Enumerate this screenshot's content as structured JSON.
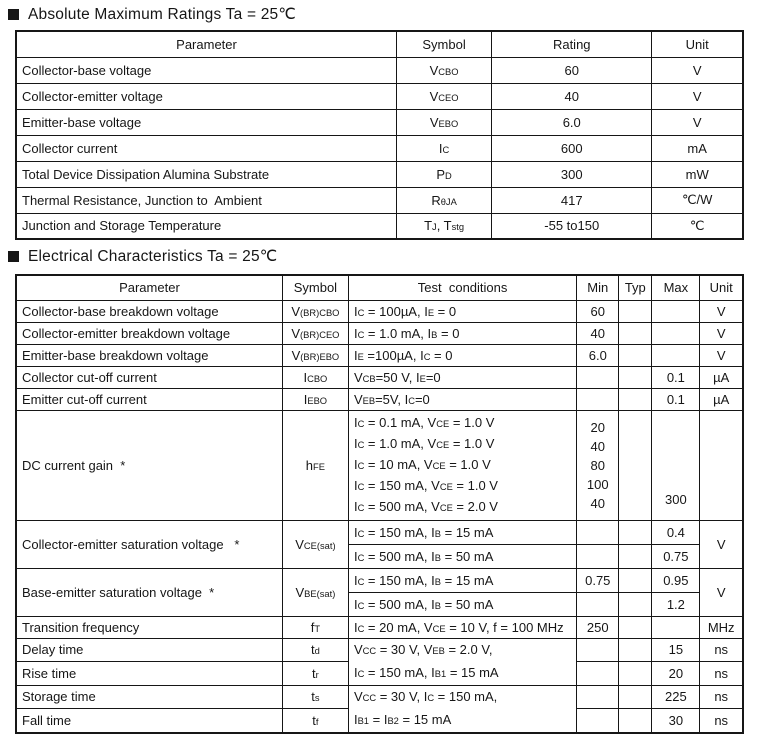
{
  "section1": {
    "title": "Absolute Maximum Ratings Ta = 25℃",
    "headers": {
      "parameter": "Parameter",
      "symbol": "Symbol",
      "rating": "Rating",
      "unit": "Unit"
    },
    "rows": {
      "vcbo": {
        "parameter": "Collector-base voltage",
        "symbol": "V{CBO}",
        "rating": "60",
        "unit": "V"
      },
      "vceo": {
        "parameter": "Collector-emitter voltage",
        "symbol": "V{CEO}",
        "rating": "40",
        "unit": "V"
      },
      "vebo": {
        "parameter": "Emitter-base voltage",
        "symbol": "V{EBO}",
        "rating": "6.0",
        "unit": "V"
      },
      "ic": {
        "parameter": "Collector current",
        "symbol": "I{C}",
        "rating": "600",
        "unit": "mA"
      },
      "pd": {
        "parameter": "Total Device Dissipation Alumina Substrate",
        "symbol": "P{D}",
        "rating": "300",
        "unit": "mW"
      },
      "rth": {
        "parameter": "Thermal Resistance, Junction to  Ambient",
        "symbol": "R{θJA}",
        "rating": "417",
        "unit": "℃/W"
      },
      "tj": {
        "parameter": "Junction and Storage Temperature",
        "symbol": "T{J}, T{stg}",
        "rating": "-55 to150",
        "unit": "℃"
      }
    }
  },
  "section2": {
    "title": "Electrical Characteristics Ta = 25℃",
    "headers": {
      "parameter": "Parameter",
      "symbol": "Symbol",
      "conditions": "Test  conditions",
      "min": "Min",
      "typ": "Typ",
      "max": "Max",
      "unit": "Unit"
    },
    "rows": {
      "cbo": {
        "parameter": "Collector-base breakdown voltage",
        "symbol": "V{(BR)CBO}",
        "conditions": "I{C} = 100µA, I{E} = 0",
        "min": "60",
        "typ": "",
        "max": "",
        "unit": "V"
      },
      "ceo": {
        "parameter": "Collector-emitter breakdown voltage",
        "symbol": "V{(BR)CEO}",
        "conditions": "I{C} = 1.0 mA, I{B} = 0",
        "min": "40",
        "typ": "",
        "max": "",
        "unit": "V"
      },
      "ebo": {
        "parameter": "Emitter-base breakdown voltage",
        "symbol": "V{(BR)EBO}",
        "conditions": "I{E} =100µA, I{C} = 0",
        "min": "6.0",
        "typ": "",
        "max": "",
        "unit": "V"
      },
      "icbo": {
        "parameter": "Collector cut-off current",
        "symbol": "I{CBO}",
        "conditions": "V{CB}=50 V, I{E}=0",
        "min": "",
        "typ": "",
        "max": "0.1",
        "unit": "µA"
      },
      "iebo": {
        "parameter": "Emitter cut-off current",
        "symbol": "I{EBO}",
        "conditions": "V{EB}=5V, I{C}=0",
        "min": "",
        "typ": "",
        "max": "0.1",
        "unit": "µA"
      },
      "hfe": {
        "parameter": "DC current gain  *",
        "symbol": "h{FE}",
        "conditions": "I{C} = 0.1 mA, V{CE} = 1.0 V\nI{C} = 1.0 mA, V{CE} = 1.0 V\nI{C} = 10 mA, V{CE} = 1.0 V\nI{C} = 150 mA, V{CE} = 1.0 V\nI{C} = 500 mA, V{CE} = 2.0 V",
        "min": "20\n40\n80\n100\n40",
        "typ": "",
        "max": "300",
        "unit": ""
      },
      "vcesat": {
        "parameter": "Collector-emitter saturation voltage   *",
        "symbol": "V{CE(sat)}",
        "unit": "V",
        "sub1": {
          "conditions": "I{C} = 150 mA, I{B} = 15 mA",
          "min": "",
          "typ": "",
          "max": "0.4"
        },
        "sub2": {
          "conditions": "I{C} = 500 mA, I{B} = 50 mA",
          "min": "",
          "typ": "",
          "max": "0.75"
        }
      },
      "vbesat": {
        "parameter": "Base-emitter saturation voltage  *",
        "symbol": "V{BE(sat)}",
        "unit": "V",
        "sub1": {
          "conditions": "I{C} = 150 mA, I{B} = 15 mA",
          "min": "0.75",
          "typ": "",
          "max": "0.95"
        },
        "sub2": {
          "conditions": "I{C} = 500 mA, I{B} = 50 mA",
          "min": "",
          "typ": "",
          "max": "1.2"
        }
      },
      "ft": {
        "parameter": "Transition frequency",
        "symbol": "f{T}",
        "conditions": "I{C} = 20 mA, V{CE} = 10 V, f = 100 MHz",
        "min": "250",
        "typ": "",
        "max": "",
        "unit": "MHz"
      },
      "delay": {
        "parameter": "Delay time",
        "symbol": "t{d}",
        "min": "",
        "typ": "",
        "max": "15",
        "unit": "ns"
      },
      "rise": {
        "parameter": "Rise time",
        "symbol": "t{r}",
        "min": "",
        "typ": "",
        "max": "20",
        "unit": "ns"
      },
      "delay_rise_conditions": "V{CC} = 30 V, V{EB} = 2.0 V,\nI{C} = 150 mA, I{B1} = 15 mA",
      "storage": {
        "parameter": "Storage time",
        "symbol": "t{s}",
        "min": "",
        "typ": "",
        "max": "225",
        "unit": "ns"
      },
      "fall": {
        "parameter": "Fall time",
        "symbol": "t{f}",
        "min": "",
        "typ": "",
        "max": "30",
        "unit": "ns"
      },
      "storage_fall_conditions": "V{CC} = 30 V, I{C} = 150 mA,\nI{B1} = I{B2} = 15 mA"
    }
  }
}
